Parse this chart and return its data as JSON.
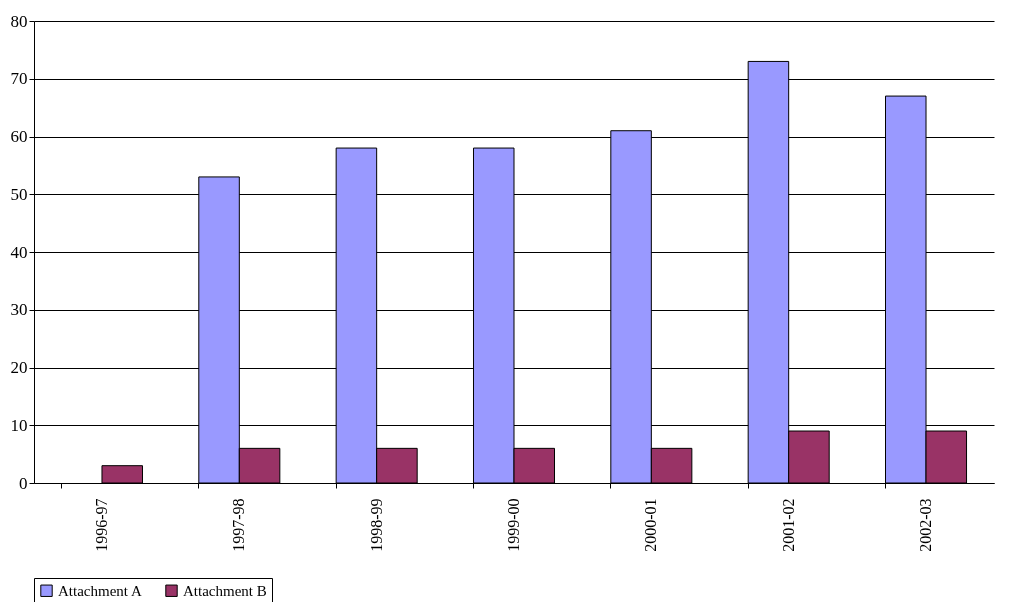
{
  "chart_data": {
    "type": "bar",
    "categories": [
      "1996-97",
      "1997-98",
      "1998-99",
      "1999-00",
      "2000-01",
      "2001-02",
      "2002-03"
    ],
    "series": [
      {
        "name": "Attachment A",
        "color": "#9999ff",
        "values": [
          null,
          53,
          58,
          58,
          61,
          73,
          67
        ]
      },
      {
        "name": "Attachment B",
        "color": "#993366",
        "values": [
          3,
          6,
          6,
          6,
          6,
          9,
          9
        ]
      }
    ],
    "ylim": [
      0,
      80
    ],
    "yticks": [
      0,
      10,
      20,
      30,
      40,
      50,
      60,
      70,
      80
    ],
    "grid": "y",
    "legend": "bottom"
  }
}
